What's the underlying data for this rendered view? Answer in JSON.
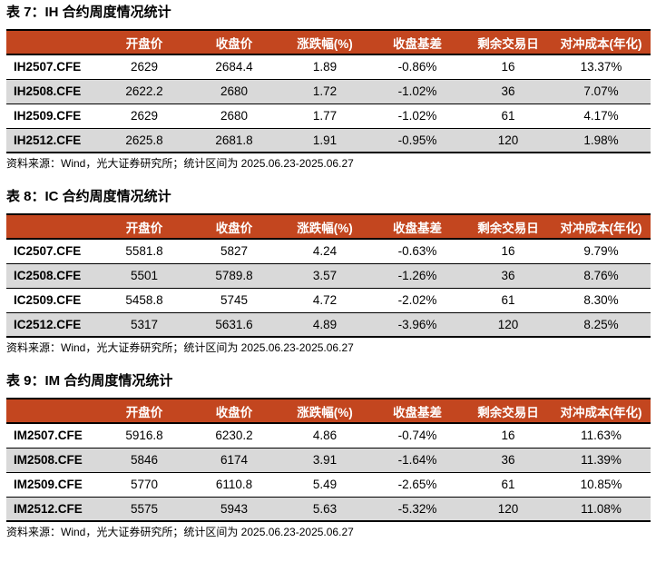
{
  "page": {
    "background": "#ffffff",
    "header_bg": "#C3461F",
    "header_text_color": "#ffffff",
    "row_alt_bg": "#D9D9D9",
    "border_color": "#000000"
  },
  "columns": [
    "",
    "开盘价",
    "收盘价",
    "涨跌幅(%)",
    "收盘基差",
    "剩余交易日",
    "对冲成本(年化)"
  ],
  "tables": [
    {
      "id": "ih",
      "title": "表 7：IH 合约周度情况统计",
      "source": "资料来源：Wind，光大证券研究所；统计区间为 2025.06.23-2025.06.27",
      "rows": [
        [
          "IH2507.CFE",
          "2629",
          "2684.4",
          "1.89",
          "-0.86%",
          "16",
          "13.37%"
        ],
        [
          "IH2508.CFE",
          "2622.2",
          "2680",
          "1.72",
          "-1.02%",
          "36",
          "7.07%"
        ],
        [
          "IH2509.CFE",
          "2629",
          "2680",
          "1.77",
          "-1.02%",
          "61",
          "4.17%"
        ],
        [
          "IH2512.CFE",
          "2625.8",
          "2681.8",
          "1.91",
          "-0.95%",
          "120",
          "1.98%"
        ]
      ]
    },
    {
      "id": "ic",
      "title": "表 8：IC 合约周度情况统计",
      "source": "资料来源：Wind，光大证券研究所；统计区间为 2025.06.23-2025.06.27",
      "rows": [
        [
          "IC2507.CFE",
          "5581.8",
          "5827",
          "4.24",
          "-0.63%",
          "16",
          "9.79%"
        ],
        [
          "IC2508.CFE",
          "5501",
          "5789.8",
          "3.57",
          "-1.26%",
          "36",
          "8.76%"
        ],
        [
          "IC2509.CFE",
          "5458.8",
          "5745",
          "4.72",
          "-2.02%",
          "61",
          "8.30%"
        ],
        [
          "IC2512.CFE",
          "5317",
          "5631.6",
          "4.89",
          "-3.96%",
          "120",
          "8.25%"
        ]
      ]
    },
    {
      "id": "im",
      "title": "表 9：IM 合约周度情况统计",
      "source": "资料来源：Wind，光大证券研究所；统计区间为 2025.06.23-2025.06.27",
      "rows": [
        [
          "IM2507.CFE",
          "5916.8",
          "6230.2",
          "4.86",
          "-0.74%",
          "16",
          "11.63%"
        ],
        [
          "IM2508.CFE",
          "5846",
          "6174",
          "3.91",
          "-1.64%",
          "36",
          "11.39%"
        ],
        [
          "IM2509.CFE",
          "5770",
          "6110.8",
          "5.49",
          "-2.65%",
          "61",
          "10.85%"
        ],
        [
          "IM2512.CFE",
          "5575",
          "5943",
          "5.63",
          "-5.32%",
          "120",
          "11.08%"
        ]
      ]
    }
  ]
}
